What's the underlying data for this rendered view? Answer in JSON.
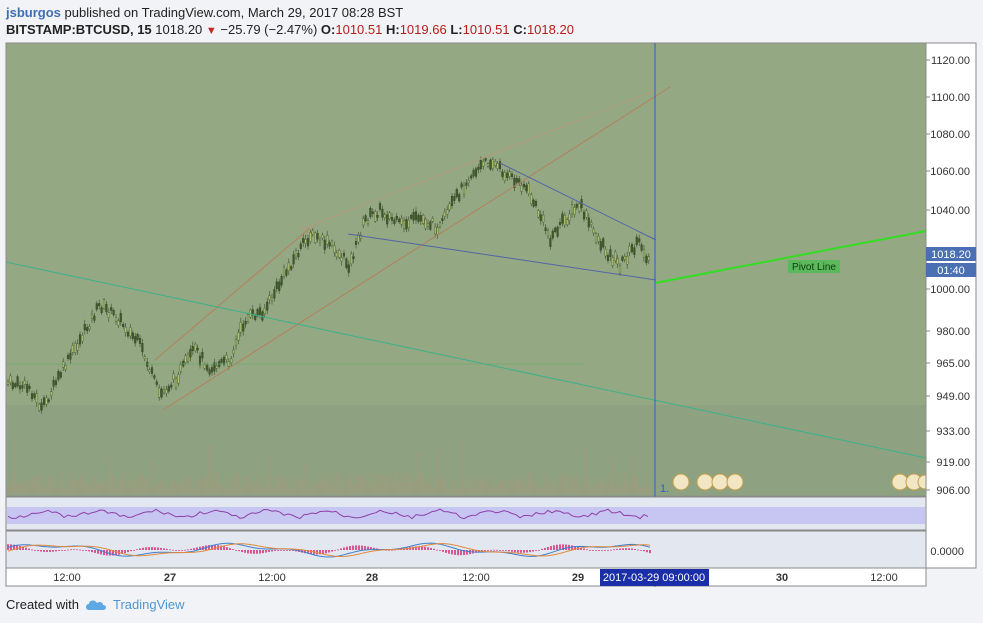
{
  "header": {
    "author": "jsburgos",
    "published_text": "published on TradingView.com, March 29, 2017 08:28 BST"
  },
  "ticker": {
    "symbol": "BITSTAMP:BTCUSD, 15",
    "last": "1018.20",
    "arrow": "▼",
    "change": "−25.79 (−2.47%)",
    "o_label": "O:",
    "o": "1010.51",
    "h_label": "H:",
    "h": "1019.66",
    "l_label": "L:",
    "l": "1010.51",
    "c_label": "C:",
    "c": "1018.20"
  },
  "price_axis": {
    "ticks": [
      "1120.00",
      "1100.00",
      "1080.00",
      "1060.00",
      "1040.00",
      "1018.20",
      "1000.00",
      "980.00",
      "965.00",
      "949.00",
      "933.00",
      "919.00",
      "906.00"
    ],
    "current_price": "1018.20",
    "countdown": "01:40"
  },
  "time_axis": {
    "ticks": [
      "12:00",
      "27",
      "12:00",
      "28",
      "12:00",
      "29",
      "30",
      "12:00"
    ],
    "crosshair_label": "2017-03-29 09:00:00"
  },
  "annotations": {
    "pivot_label": "Pivot Line",
    "bottom_marker": "1."
  },
  "oscillator": {
    "macd_value": "0.0000"
  },
  "colors": {
    "chart_bg": "#93a883",
    "pivot": "#33dd22",
    "crosshair": "#2a62c9",
    "axis_label_bg": "#1a2ea8"
  },
  "footer": {
    "created_with": "Created with",
    "brand": "TradingView"
  }
}
